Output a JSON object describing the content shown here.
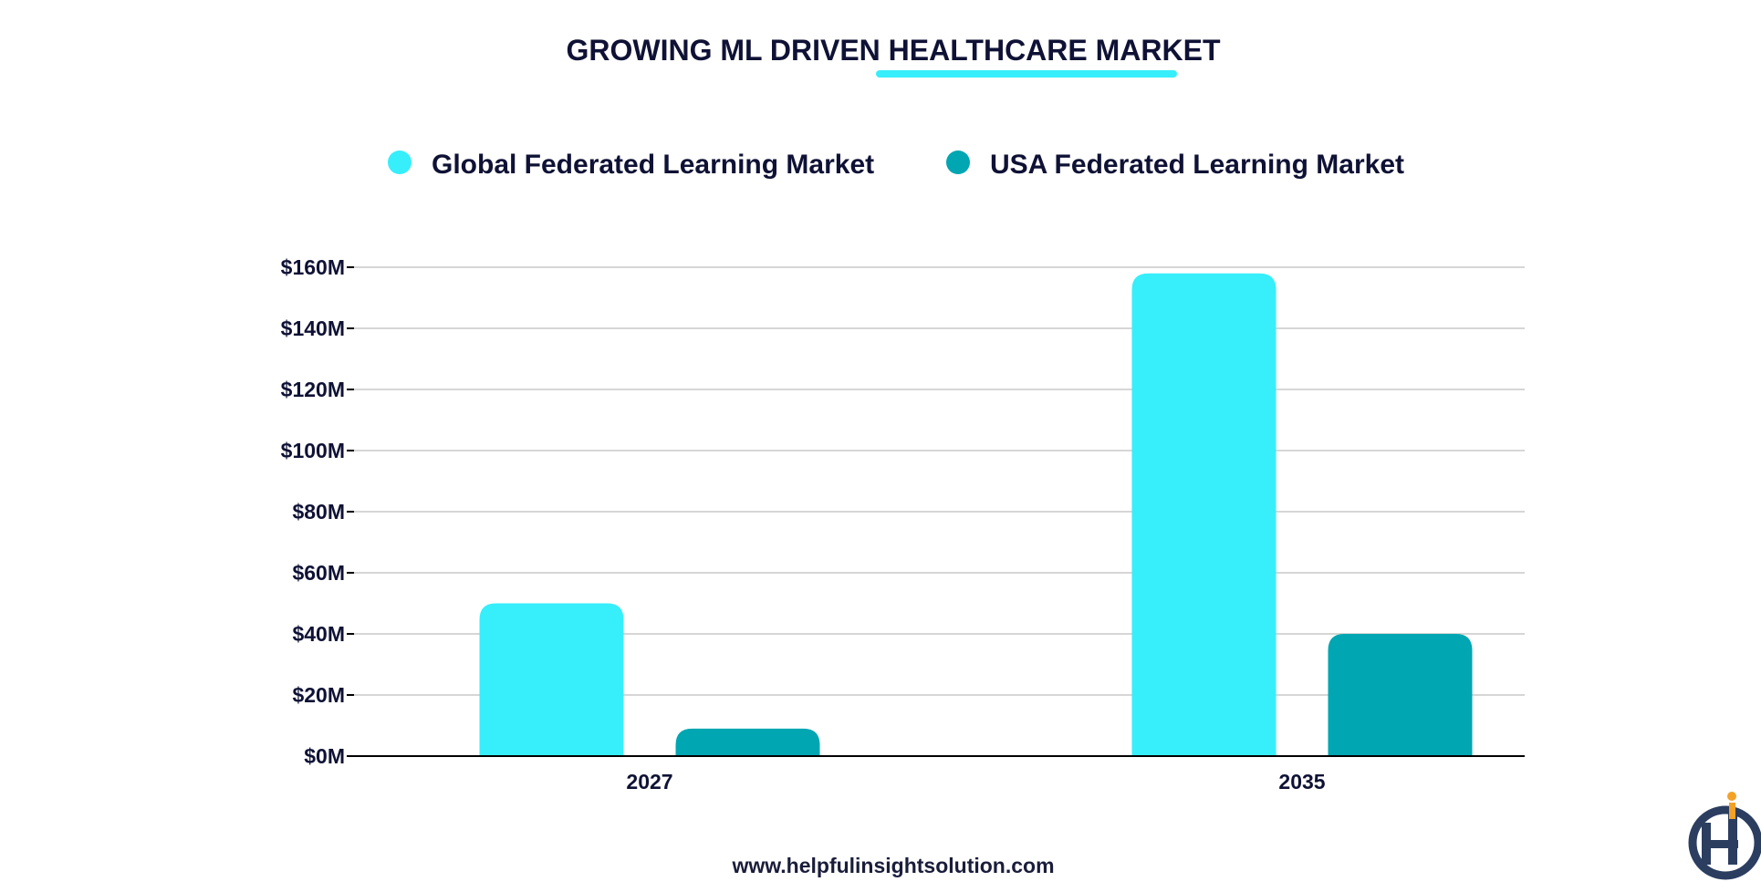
{
  "footer": {
    "website": "www.helpfulinsightsolution.com"
  },
  "logo": {
    "name": "helpful-insight-logo"
  },
  "colors": {
    "global": "#37EEFB",
    "usa": "#00A6B2",
    "title_underline": "#37EEFB",
    "text": "#0F1235",
    "grid": "#C8C8C8",
    "axis": "#000000",
    "logo_navy": "#2B3E60",
    "logo_orange": "#F4A127"
  },
  "chart_data": {
    "type": "bar",
    "title": "GROWING ML DRIVEN HEALTHCARE MARKET",
    "categories": [
      "2027",
      "2035"
    ],
    "series": [
      {
        "name": "Global Federated Learning Market",
        "values": [
          50,
          158
        ]
      },
      {
        "name": "USA Federated Learning Market",
        "values": [
          9,
          40
        ]
      }
    ],
    "yticks": [
      "$0M",
      "$20M",
      "$40M",
      "$60M",
      "$80M",
      "$100M",
      "$120M",
      "$140M",
      "$160M"
    ],
    "ylim": [
      0,
      160
    ],
    "grid": true,
    "legend": "top-center"
  }
}
